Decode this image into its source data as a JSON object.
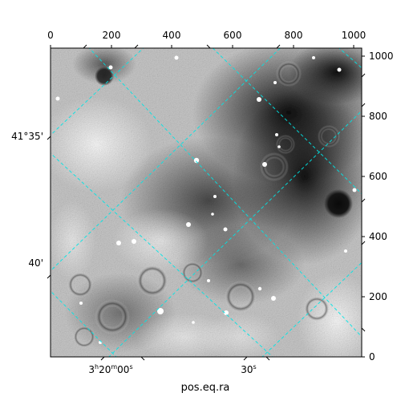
{
  "figure": {
    "xlabel": "pos.eq.ra",
    "pixel_axis_x": {
      "ticks": [
        0,
        200,
        400,
        600,
        800,
        1000
      ],
      "range": [
        0,
        1024
      ]
    },
    "pixel_axis_y": {
      "ticks": [
        0,
        200,
        400,
        600,
        800,
        1000
      ],
      "range": [
        0,
        1024
      ]
    },
    "ra_ticks": [
      {
        "label_main": "3",
        "sup1": "h",
        "mid": "20",
        "sup2": "m",
        "sec": "00",
        "sup3": "s"
      },
      {
        "label_main": "30",
        "sup1": "s"
      }
    ],
    "dec_ticks": [
      "41°35'",
      "40'"
    ],
    "grid_color": "#00e5e5",
    "frame_color": "#000000"
  }
}
